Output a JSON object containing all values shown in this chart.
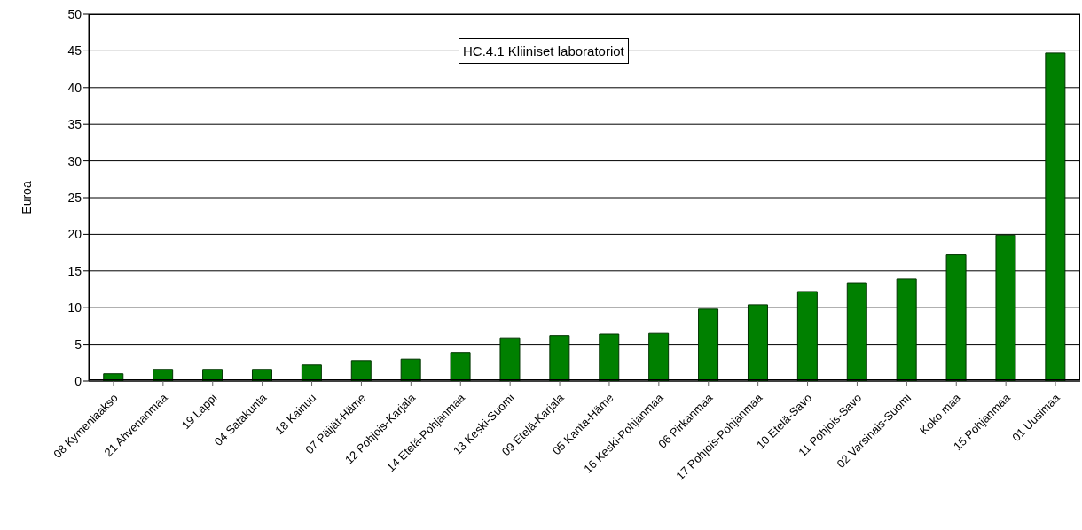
{
  "chart_data": {
    "type": "bar",
    "title": "HC.4.1 Kliiniset laboratoriot",
    "ylabel": "Euroa",
    "categories": [
      "08 Kymenlaakso",
      "21 Ahvenanmaa",
      "19 Lappi",
      "04 Satakunta",
      "18 Kainuu",
      "07 Päijät-Häme",
      "12 Pohjois-Karjala",
      "14 Etelä-Pohjanmaa",
      "13 Keski-Suomi",
      "09 Etelä-Karjala",
      "05 Kanta-Häme",
      "16 Keski-Pohjanmaa",
      "06 Pirkanmaa",
      "17 Pohjois-Pohjanmaa",
      "10 Etelä-Savo",
      "11 Pohjois-Savo",
      "02 Varsinais-Suomi",
      "Koko maa",
      "15 Pohjanmaa",
      "01 Uusimaa"
    ],
    "values": [
      1.0,
      1.6,
      1.6,
      1.6,
      2.2,
      2.8,
      3.0,
      3.9,
      5.9,
      6.2,
      6.4,
      6.5,
      9.8,
      10.4,
      12.2,
      13.4,
      13.9,
      17.2,
      19.9,
      44.7
    ],
    "color": "#008000",
    "ylim": [
      0,
      50
    ],
    "yticks": [
      0,
      5,
      10,
      15,
      20,
      25,
      30,
      35,
      40,
      45,
      50
    ],
    "grid": "y"
  }
}
